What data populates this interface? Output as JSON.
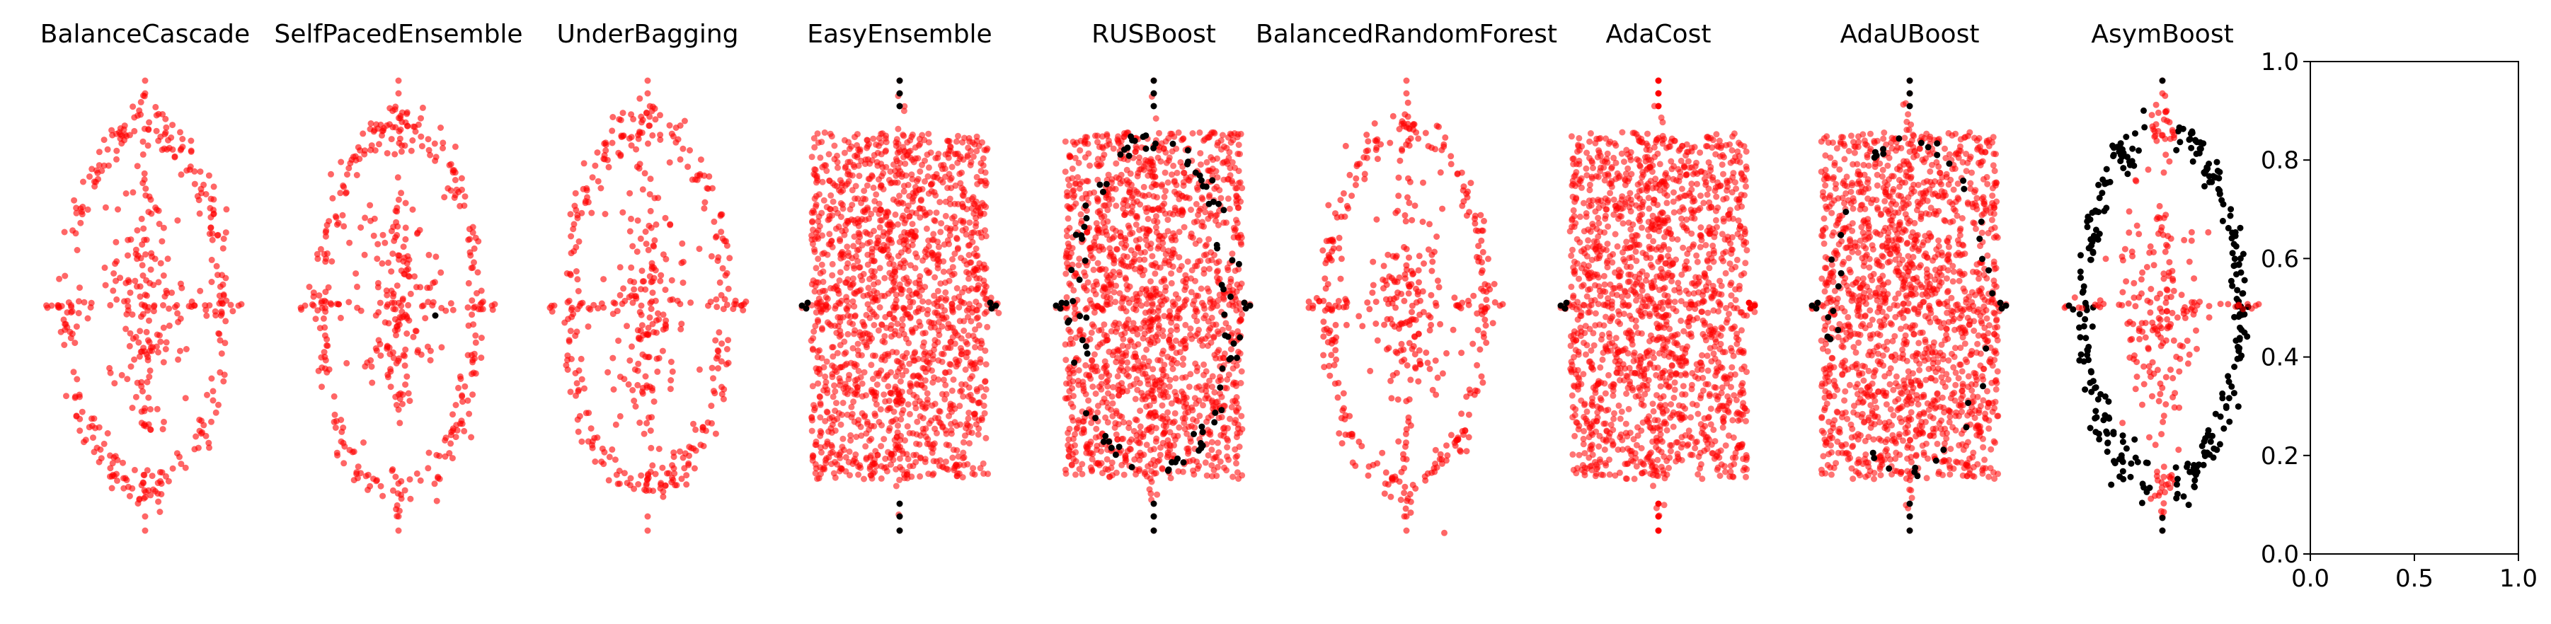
{
  "figure": {
    "colors": {
      "prediction_red": "#ff0000",
      "prediction_black": "#000000",
      "background": "#ffffff",
      "axis": "#000000"
    }
  },
  "chart_data": [
    {
      "type": "scatter",
      "title": "BalanceCascade",
      "axes_visible": false,
      "style": "ring-sparse",
      "misclassified": "none"
    },
    {
      "type": "scatter",
      "title": "SelfPacedEnsemble",
      "axes_visible": false,
      "style": "ring-sparse",
      "misclassified": "single"
    },
    {
      "type": "scatter",
      "title": "UnderBagging",
      "axes_visible": false,
      "style": "ring-sparse",
      "misclassified": "none"
    },
    {
      "type": "scatter",
      "title": "EasyEnsemble",
      "axes_visible": false,
      "style": "filled-rect",
      "misclassified": "tips"
    },
    {
      "type": "scatter",
      "title": "RUSBoost",
      "axes_visible": false,
      "style": "filled-rect",
      "misclassified": "heavy"
    },
    {
      "type": "scatter",
      "title": "BalancedRandomForest",
      "axes_visible": false,
      "style": "ring-sparse",
      "misclassified": "none"
    },
    {
      "type": "scatter",
      "title": "AdaCost",
      "axes_visible": false,
      "style": "filled-rect",
      "misclassified": "left-tip"
    },
    {
      "type": "scatter",
      "title": "AdaUBoost",
      "axes_visible": false,
      "style": "filled-rect",
      "misclassified": "moderate"
    },
    {
      "type": "scatter",
      "title": "AsymBoost",
      "axes_visible": false,
      "style": "ring-black",
      "misclassified": "ring"
    },
    {
      "type": "empty",
      "title": "",
      "axes_visible": true,
      "xlim": [
        0.0,
        1.0
      ],
      "ylim": [
        0.0,
        1.0
      ],
      "xticks": [
        "0.0",
        "0.5",
        "1.0"
      ],
      "yticks": [
        "0.0",
        "0.2",
        "0.4",
        "0.6",
        "0.8",
        "1.0"
      ],
      "grid": false
    }
  ]
}
